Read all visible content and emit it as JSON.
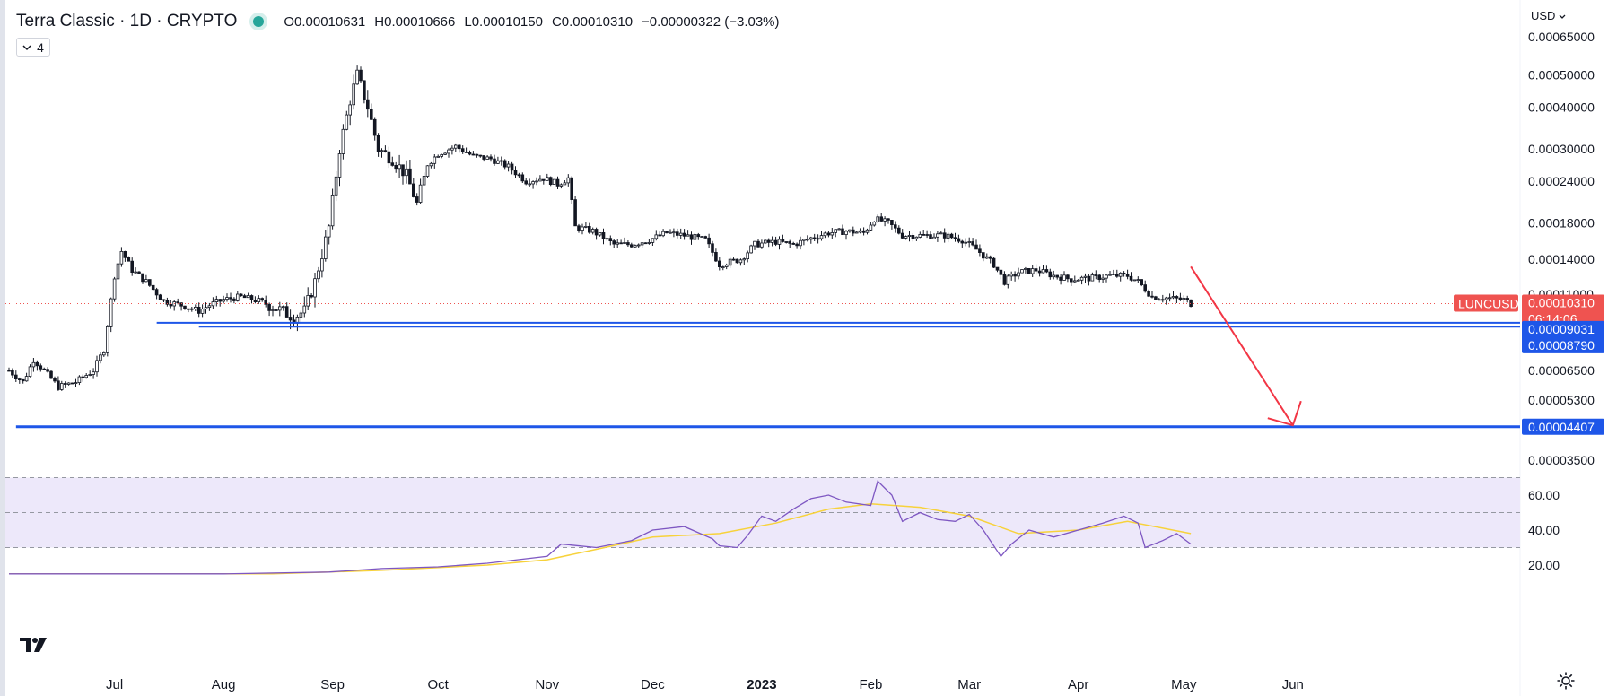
{
  "header": {
    "title": "Terra Classic · 1D · CRYPTO",
    "ohlc": {
      "open": "O0.00010631",
      "high": "H0.00010666",
      "low": "L0.00010150",
      "close": "C0.00010310",
      "change": "−0.00000322 (−3.03%)"
    },
    "indicator_count": "4",
    "currency": "USD"
  },
  "icons": {
    "status": "status-dot-icon",
    "collapse": "chevron-down-icon",
    "currency_menu": "chevron-down-icon",
    "logo": "tradingview-logo-icon",
    "settings": "gear-icon"
  },
  "colors": {
    "bull": "#26a69a",
    "bear": "#ef5350",
    "candle_body": "#131722",
    "support": "#1e56e8",
    "arrow": "#f23645",
    "rsi_line": "#7e57c2",
    "rsi_ma": "#f7d23b",
    "rsi_band": "#ede8fa"
  },
  "badges": {
    "symbol": "LUNCUSD",
    "last_price": "0.00010310",
    "countdown": "06:14:06",
    "support_1": "0.00009031",
    "support_2": "0.00008790",
    "support_3": "0.00004407"
  },
  "chart_data": {
    "type": "candlestick",
    "scale": "log",
    "y_ticks": [
      "0.00065000",
      "0.00050000",
      "0.00040000",
      "0.00030000",
      "0.00024000",
      "0.00018000",
      "0.00014000",
      "0.00011000",
      "0.00006500",
      "0.00005300",
      "0.00003500"
    ],
    "x_ticks": [
      "Jul",
      "Aug",
      "Sep",
      "Oct",
      "Nov",
      "Dec",
      "2023",
      "Feb",
      "Mar",
      "Apr",
      "May",
      "Jun"
    ],
    "last_price": 0.0001031,
    "support_levels": [
      9.031e-05,
      8.79e-05,
      4.407e-05
    ],
    "projection": {
      "from": [
        "2023-05-03",
        0.000133
      ],
      "to": [
        "2023-06-01",
        4.45e-05
      ]
    },
    "price_points": [
      [
        "2022-06-01",
        6.5e-05
      ],
      [
        "2022-06-05",
        6e-05
      ],
      [
        "2022-06-08",
        7e-05
      ],
      [
        "2022-06-11",
        6.5e-05
      ],
      [
        "2022-06-15",
        5.8e-05
      ],
      [
        "2022-06-20",
        6e-05
      ],
      [
        "2022-06-25",
        6.5e-05
      ],
      [
        "2022-06-28",
        7.5e-05
      ],
      [
        "2022-07-01",
        0.000125
      ],
      [
        "2022-07-03",
        0.000148
      ],
      [
        "2022-07-06",
        0.00013
      ],
      [
        "2022-07-10",
        0.00012
      ],
      [
        "2022-07-15",
        0.000105
      ],
      [
        "2022-07-20",
        0.000102
      ],
      [
        "2022-07-25",
        9.8e-05
      ],
      [
        "2022-07-28",
        0.000102
      ],
      [
        "2022-08-01",
        0.000106
      ],
      [
        "2022-08-06",
        0.000108
      ],
      [
        "2022-08-11",
        0.000105
      ],
      [
        "2022-08-16",
        0.0001
      ],
      [
        "2022-08-21",
        9.4e-05
      ],
      [
        "2022-08-24",
        9.8e-05
      ],
      [
        "2022-08-27",
        0.00012
      ],
      [
        "2022-08-31",
        0.000175
      ],
      [
        "2022-09-03",
        0.0003
      ],
      [
        "2022-09-06",
        0.00042
      ],
      [
        "2022-09-08",
        0.0005
      ],
      [
        "2022-09-11",
        0.0004
      ],
      [
        "2022-09-14",
        0.0003
      ],
      [
        "2022-09-18",
        0.00028
      ],
      [
        "2022-09-22",
        0.00025
      ],
      [
        "2022-09-25",
        0.000205
      ],
      [
        "2022-09-28",
        0.00027
      ],
      [
        "2022-10-01",
        0.00029
      ],
      [
        "2022-10-06",
        0.000305
      ],
      [
        "2022-10-11",
        0.000285
      ],
      [
        "2022-10-16",
        0.00028
      ],
      [
        "2022-10-21",
        0.000265
      ],
      [
        "2022-10-26",
        0.00024
      ],
      [
        "2022-10-31",
        0.000245
      ],
      [
        "2022-11-04",
        0.000235
      ],
      [
        "2022-11-07",
        0.000245
      ],
      [
        "2022-11-09",
        0.000175
      ],
      [
        "2022-11-14",
        0.00017
      ],
      [
        "2022-11-20",
        0.000155
      ],
      [
        "2022-11-25",
        0.000155
      ],
      [
        "2022-11-30",
        0.00016
      ],
      [
        "2022-12-05",
        0.000168
      ],
      [
        "2022-12-10",
        0.000165
      ],
      [
        "2022-12-16",
        0.00016
      ],
      [
        "2022-12-20",
        0.000135
      ],
      [
        "2022-12-26",
        0.00014
      ],
      [
        "2022-12-30",
        0.000155
      ],
      [
        "2023-01-05",
        0.000158
      ],
      [
        "2023-01-10",
        0.000155
      ],
      [
        "2023-01-15",
        0.000162
      ],
      [
        "2023-01-20",
        0.000168
      ],
      [
        "2023-01-25",
        0.00017
      ],
      [
        "2023-01-30",
        0.000168
      ],
      [
        "2023-02-02",
        0.000185
      ],
      [
        "2023-02-06",
        0.00018
      ],
      [
        "2023-02-10",
        0.000165
      ],
      [
        "2023-02-16",
        0.000165
      ],
      [
        "2023-02-22",
        0.000165
      ],
      [
        "2023-02-27",
        0.00016
      ],
      [
        "2023-03-03",
        0.00015
      ],
      [
        "2023-03-08",
        0.000135
      ],
      [
        "2023-03-11",
        0.00012
      ],
      [
        "2023-03-15",
        0.000128
      ],
      [
        "2023-03-20",
        0.00013
      ],
      [
        "2023-03-25",
        0.000125
      ],
      [
        "2023-03-30",
        0.000122
      ],
      [
        "2023-04-05",
        0.000123
      ],
      [
        "2023-04-10",
        0.000125
      ],
      [
        "2023-04-15",
        0.000125
      ],
      [
        "2023-04-18",
        0.00012
      ],
      [
        "2023-04-22",
        0.000108
      ],
      [
        "2023-04-27",
        0.000107
      ],
      [
        "2023-05-01",
        0.000106
      ],
      [
        "2023-05-03",
        0.0001031
      ]
    ],
    "rsi": {
      "levels": [
        70,
        50,
        30
      ],
      "ticks": [
        "60.00",
        "40.00",
        "20.00"
      ],
      "points": [
        [
          "2022-06-01",
          15
        ],
        [
          "2022-08-01",
          15
        ],
        [
          "2022-08-31",
          16
        ],
        [
          "2022-09-15",
          18
        ],
        [
          "2022-10-01",
          19
        ],
        [
          "2022-10-15",
          21
        ],
        [
          "2022-11-01",
          25
        ],
        [
          "2022-11-05",
          32
        ],
        [
          "2022-11-15",
          30
        ],
        [
          "2022-11-25",
          34
        ],
        [
          "2022-12-01",
          40
        ],
        [
          "2022-12-10",
          42
        ],
        [
          "2022-12-18",
          35
        ],
        [
          "2022-12-20",
          31
        ],
        [
          "2022-12-25",
          30
        ],
        [
          "2022-12-28",
          37
        ],
        [
          "2023-01-01",
          48
        ],
        [
          "2023-01-05",
          45
        ],
        [
          "2023-01-10",
          52
        ],
        [
          "2023-01-15",
          58
        ],
        [
          "2023-01-20",
          60
        ],
        [
          "2023-01-25",
          56
        ],
        [
          "2023-02-01",
          54
        ],
        [
          "2023-02-03",
          68
        ],
        [
          "2023-02-07",
          60
        ],
        [
          "2023-02-10",
          45
        ],
        [
          "2023-02-15",
          50
        ],
        [
          "2023-02-20",
          46
        ],
        [
          "2023-02-25",
          45
        ],
        [
          "2023-03-01",
          49
        ],
        [
          "2023-03-05",
          40
        ],
        [
          "2023-03-10",
          25
        ],
        [
          "2023-03-13",
          32
        ],
        [
          "2023-03-18",
          40
        ],
        [
          "2023-03-25",
          36
        ],
        [
          "2023-04-01",
          40
        ],
        [
          "2023-04-08",
          44
        ],
        [
          "2023-04-14",
          48
        ],
        [
          "2023-04-18",
          44
        ],
        [
          "2023-04-20",
          30
        ],
        [
          "2023-04-25",
          34
        ],
        [
          "2023-04-29",
          38
        ],
        [
          "2023-05-03",
          32
        ]
      ],
      "ma_points": [
        [
          "2022-06-01",
          15
        ],
        [
          "2022-08-15",
          15
        ],
        [
          "2022-09-15",
          17
        ],
        [
          "2022-10-15",
          20
        ],
        [
          "2022-11-01",
          23
        ],
        [
          "2022-11-15",
          29
        ],
        [
          "2022-12-01",
          36
        ],
        [
          "2022-12-20",
          38
        ],
        [
          "2023-01-05",
          44
        ],
        [
          "2023-01-20",
          52
        ],
        [
          "2023-02-01",
          55
        ],
        [
          "2023-02-15",
          53
        ],
        [
          "2023-03-01",
          48
        ],
        [
          "2023-03-15",
          38
        ],
        [
          "2023-04-01",
          40
        ],
        [
          "2023-04-15",
          45
        ],
        [
          "2023-05-03",
          38
        ]
      ]
    }
  }
}
